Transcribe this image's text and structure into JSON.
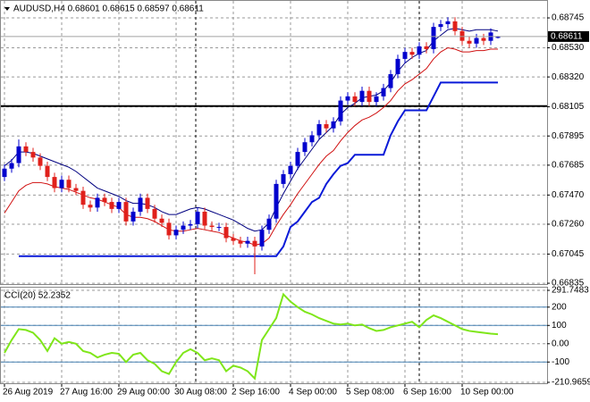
{
  "chart_data": [
    {
      "type": "candlestick",
      "title": "AUDUSD,H4 0.68601 0.68615 0.68597 0.68611",
      "categories": [
        "26 Aug 2019",
        null,
        null,
        null,
        null,
        null,
        null,
        null,
        "27 Aug 16:00",
        null,
        null,
        null,
        null,
        null,
        null,
        null,
        "29 Aug 00:00",
        null,
        null,
        null,
        null,
        null,
        null,
        null,
        "30 Aug 08:00",
        null,
        null,
        null,
        null,
        null,
        null,
        null,
        "2 Sep 16:00",
        null,
        null,
        null,
        null,
        null,
        null,
        null,
        "4 Sep 00:00",
        null,
        null,
        null,
        null,
        null,
        null,
        null,
        "5 Sep 08:00",
        null,
        null,
        null,
        null,
        null,
        null,
        null,
        "6 Sep 16:00",
        null,
        null,
        null,
        null,
        null,
        null,
        null,
        "10 Sep 00:00",
        null,
        null,
        null,
        null,
        null
      ],
      "open": [
        0.676,
        0.6766,
        0.677,
        0.6782,
        0.6778,
        0.6774,
        0.6768,
        0.676,
        0.6752,
        0.6758,
        0.6752,
        0.675,
        0.674,
        0.6738,
        0.6745,
        0.6742,
        0.6737,
        0.6742,
        0.6728,
        0.6735,
        0.6745,
        0.6737,
        0.673,
        0.6727,
        0.6718,
        0.6722,
        0.6725,
        0.6726,
        0.6735,
        0.6725,
        0.6724,
        0.6724,
        0.6716,
        0.6714,
        0.6712,
        0.6714,
        0.671,
        0.6722,
        0.673,
        0.6755,
        0.6762,
        0.6768,
        0.6778,
        0.6785,
        0.679,
        0.6798,
        0.6795,
        0.68,
        0.6815,
        0.6818,
        0.6814,
        0.6822,
        0.6814,
        0.6818,
        0.6824,
        0.6834,
        0.6845,
        0.685,
        0.6848,
        0.6854,
        0.6852,
        0.6868,
        0.687,
        0.6872,
        0.6865,
        0.6858,
        0.6856,
        0.686,
        0.6858,
        0.68601
      ],
      "high": [
        0.6769,
        0.6773,
        0.6787,
        0.6785,
        0.6781,
        0.6777,
        0.6771,
        0.6763,
        0.6761,
        0.6761,
        0.6755,
        0.6753,
        0.6743,
        0.6748,
        0.6748,
        0.6745,
        0.6745,
        0.6745,
        0.6738,
        0.6748,
        0.6748,
        0.674,
        0.6733,
        0.673,
        0.6725,
        0.6728,
        0.6729,
        0.6738,
        0.6738,
        0.6728,
        0.6727,
        0.6727,
        0.6719,
        0.6717,
        0.6717,
        0.6717,
        0.6725,
        0.6733,
        0.6758,
        0.6765,
        0.6771,
        0.6781,
        0.6788,
        0.6793,
        0.6801,
        0.6801,
        0.6803,
        0.6818,
        0.6821,
        0.6821,
        0.6825,
        0.6825,
        0.6821,
        0.6827,
        0.6837,
        0.6848,
        0.6853,
        0.6853,
        0.6857,
        0.6857,
        0.6871,
        0.6873,
        0.6875,
        0.6875,
        0.6868,
        0.6861,
        0.6863,
        0.6863,
        0.6867,
        0.68615
      ],
      "low": [
        0.6757,
        0.6763,
        0.6767,
        0.6775,
        0.6771,
        0.6765,
        0.6757,
        0.6749,
        0.6749,
        0.6749,
        0.6747,
        0.6737,
        0.6735,
        0.6735,
        0.6739,
        0.6734,
        0.6734,
        0.6725,
        0.6725,
        0.6732,
        0.6734,
        0.6727,
        0.6724,
        0.6715,
        0.6715,
        0.6719,
        0.6722,
        0.6723,
        0.6722,
        0.6721,
        0.6721,
        0.6713,
        0.6711,
        0.6709,
        0.6709,
        0.669,
        0.6707,
        0.6719,
        0.6727,
        0.6752,
        0.6759,
        0.6765,
        0.6775,
        0.6782,
        0.6787,
        0.6792,
        0.6792,
        0.6797,
        0.6812,
        0.6811,
        0.6811,
        0.6811,
        0.6811,
        0.6815,
        0.6821,
        0.6831,
        0.6842,
        0.6845,
        0.6845,
        0.6849,
        0.6849,
        0.6865,
        0.6867,
        0.6862,
        0.6855,
        0.6853,
        0.6853,
        0.6855,
        0.6855,
        0.68597
      ],
      "close": [
        0.6766,
        0.677,
        0.6782,
        0.6778,
        0.6774,
        0.6768,
        0.676,
        0.6752,
        0.6758,
        0.6752,
        0.675,
        0.674,
        0.6738,
        0.6745,
        0.6742,
        0.6737,
        0.6742,
        0.6728,
        0.6735,
        0.6745,
        0.6737,
        0.673,
        0.6727,
        0.6718,
        0.6722,
        0.6725,
        0.6726,
        0.6735,
        0.6725,
        0.6724,
        0.6724,
        0.6716,
        0.6714,
        0.6712,
        0.6714,
        0.671,
        0.6722,
        0.673,
        0.6755,
        0.6762,
        0.6768,
        0.6778,
        0.6785,
        0.679,
        0.6798,
        0.6795,
        0.68,
        0.6815,
        0.6818,
        0.6814,
        0.6822,
        0.6814,
        0.6818,
        0.6824,
        0.6834,
        0.6845,
        0.685,
        0.6848,
        0.6854,
        0.6852,
        0.6868,
        0.687,
        0.6872,
        0.6865,
        0.6858,
        0.6856,
        0.686,
        0.6858,
        0.6864,
        0.68611
      ],
      "up_color": "#0000cd",
      "down_color": "#e0201b",
      "series": [
        {
          "color": "#000080",
          "width": 1,
          "values": [
            0.6768,
            0.6772,
            0.6778,
            0.6778,
            0.6777,
            0.6775,
            0.6773,
            0.6771,
            0.6769,
            0.6767,
            0.6764,
            0.676,
            0.6756,
            0.6752,
            0.675,
            0.6748,
            0.6746,
            0.6743,
            0.6741,
            0.6741,
            0.674,
            0.6738,
            0.6735,
            0.6733,
            0.6733,
            0.6735,
            0.6737,
            0.6738,
            0.6737,
            0.6735,
            0.6733,
            0.6731,
            0.6729,
            0.6726,
            0.6723,
            0.6721,
            0.6722,
            0.6727,
            0.6738,
            0.6748,
            0.6757,
            0.6766,
            0.6773,
            0.678,
            0.6787,
            0.6792,
            0.6797,
            0.6805,
            0.681,
            0.6813,
            0.6817,
            0.6818,
            0.6819,
            0.6822,
            0.6828,
            0.6836,
            0.6842,
            0.6846,
            0.6849,
            0.6851,
            0.6858,
            0.6862,
            0.6866,
            0.6867,
            0.6866,
            0.6865,
            0.6866,
            0.6866,
            0.6866,
            0.6865
          ]
        },
        {
          "color": "#d01010",
          "width": 1,
          "values": [
            0.6734,
            0.6742,
            0.675,
            0.6754,
            0.6756,
            0.6756,
            0.6755,
            0.6753,
            0.6752,
            0.6751,
            0.6749,
            0.6747,
            0.6745,
            0.6744,
            0.6742,
            0.674,
            0.6738,
            0.6733,
            0.6731,
            0.6731,
            0.673,
            0.6728,
            0.6725,
            0.6722,
            0.6721,
            0.6721,
            0.6722,
            0.6723,
            0.6722,
            0.6721,
            0.672,
            0.6718,
            0.6716,
            0.6714,
            0.6713,
            0.6711,
            0.6712,
            0.6716,
            0.6725,
            0.6733,
            0.674,
            0.6748,
            0.6755,
            0.6762,
            0.6769,
            0.6775,
            0.6779,
            0.6786,
            0.6792,
            0.6797,
            0.6801,
            0.6803,
            0.6806,
            0.681,
            0.6815,
            0.6822,
            0.6827,
            0.683,
            0.6834,
            0.6838,
            0.6845,
            0.685,
            0.6853,
            0.6852,
            0.685,
            0.685,
            0.6851,
            0.6851,
            0.6852,
            0.6852
          ]
        },
        {
          "color": "#0a1ad8",
          "width": 2,
          "values": [
            null,
            null,
            0.6703,
            0.6703,
            0.6703,
            0.6703,
            0.6703,
            0.6703,
            0.6703,
            0.6703,
            0.6703,
            0.6703,
            0.6703,
            0.6703,
            0.6703,
            0.6703,
            0.6703,
            0.6703,
            0.6703,
            0.6703,
            0.6703,
            0.6703,
            0.6703,
            0.6703,
            0.6703,
            0.6703,
            0.6703,
            0.6703,
            0.6703,
            0.6703,
            0.6703,
            0.6703,
            0.6703,
            0.6703,
            0.6703,
            0.6703,
            0.6703,
            0.6703,
            0.6703,
            0.671,
            0.6724,
            0.6728,
            0.6735,
            0.6742,
            0.6745,
            0.6755,
            0.6762,
            0.6768,
            0.677,
            0.6776,
            0.6776,
            0.6776,
            0.6776,
            0.6776,
            0.679,
            0.68,
            0.6808,
            0.6808,
            0.6808,
            0.6808,
            0.6818,
            0.6828,
            0.6828,
            0.6828,
            0.6828,
            0.6828,
            0.6828,
            0.6828,
            0.6828,
            0.6828
          ]
        }
      ],
      "hline": 0.6811,
      "last_price": 0.68611,
      "ylim": [
        0.66829,
        0.68861
      ],
      "yticks": [
        0.68745,
        {
          "value": 0.6853,
          "label": "0.68530"
        },
        {
          "value": 0.6832,
          "label": "0.68320"
        },
        0.68105,
        0.67895,
        0.67685,
        {
          "value": 0.6747,
          "label": "0.67470"
        },
        {
          "value": 0.6726,
          "label": "0.67260"
        },
        0.67045,
        0.66835
      ],
      "grid": true
    },
    {
      "type": "line",
      "title": "CCI(20) 52.2352",
      "color": "#7fe61a",
      "values": [
        -50,
        20,
        80,
        75,
        60,
        20,
        -40,
        30,
        0,
        10,
        0,
        -40,
        -50,
        -75,
        -60,
        -50,
        -55,
        -100,
        -60,
        -50,
        -90,
        -110,
        -150,
        -165,
        -100,
        -50,
        -30,
        -50,
        -90,
        -80,
        -90,
        -150,
        -120,
        -130,
        -150,
        -190,
        20,
        80,
        140,
        270,
        230,
        200,
        175,
        160,
        140,
        125,
        110,
        105,
        110,
        100,
        105,
        85,
        70,
        75,
        90,
        100,
        110,
        120,
        90,
        130,
        155,
        140,
        120,
        100,
        80,
        70,
        65,
        60,
        55,
        52.2352
      ],
      "levels": [
        200,
        100,
        -100
      ],
      "level_color": "#4682b4",
      "ylim": [
        -210.9659,
        291.7483
      ],
      "yticks": [
        291.7483,
        200,
        100,
        {
          "value": 0,
          "label": "0.00"
        },
        -100,
        -210.9659
      ],
      "grid": true
    }
  ]
}
